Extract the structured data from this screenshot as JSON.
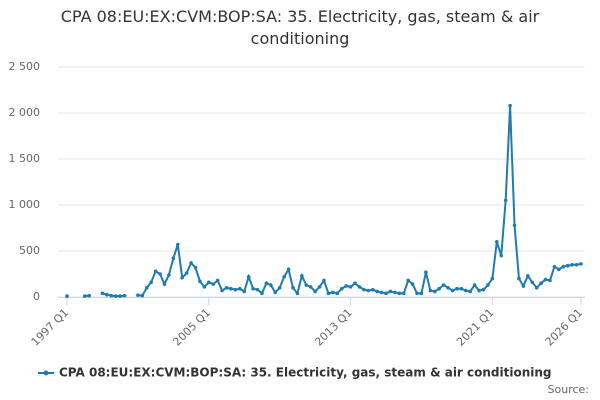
{
  "chart_data": {
    "type": "line",
    "title": "CPA 08:EU:EX:CVM:BOP:SA: 35. Electricity, gas, steam & air conditioning",
    "source": "Source:",
    "categories": [
      "1997 Q1",
      null,
      null,
      null,
      null,
      null,
      null,
      null,
      null,
      null,
      null,
      null,
      null,
      null,
      null,
      null,
      null,
      null,
      null,
      null,
      null,
      null,
      null,
      null,
      null,
      null,
      null,
      null,
      null,
      null,
      null,
      null,
      "2005 Q1",
      null,
      null,
      null,
      null,
      null,
      null,
      null,
      null,
      null,
      null,
      null,
      null,
      null,
      null,
      null,
      null,
      null,
      null,
      null,
      null,
      null,
      null,
      null,
      null,
      null,
      null,
      null,
      null,
      null,
      null,
      null,
      "2013 Q1",
      null,
      null,
      null,
      null,
      null,
      null,
      null,
      null,
      null,
      null,
      null,
      null,
      null,
      null,
      null,
      null,
      null,
      null,
      null,
      null,
      null,
      null,
      null,
      null,
      null,
      null,
      null,
      null,
      null,
      null,
      null,
      "2021 Q1",
      null,
      null,
      null,
      null,
      null,
      null,
      null,
      null,
      null,
      null,
      null,
      null,
      null,
      null,
      null,
      null,
      null,
      null,
      null,
      "2026 Q1"
    ],
    "series": [
      {
        "name": "CPA 08:EU:EX:CVM:BOP:SA: 35. Electricity, gas, steam & air conditioning",
        "color": "#1f7bb0",
        "values": [
          10,
          null,
          null,
          null,
          10,
          15,
          null,
          null,
          40,
          25,
          15,
          10,
          10,
          15,
          null,
          null,
          20,
          15,
          100,
          160,
          280,
          250,
          140,
          240,
          420,
          570,
          210,
          260,
          370,
          320,
          170,
          110,
          160,
          140,
          180,
          70,
          100,
          90,
          80,
          90,
          60,
          220,
          90,
          80,
          40,
          150,
          130,
          50,
          100,
          220,
          300,
          100,
          40,
          230,
          130,
          110,
          60,
          110,
          180,
          40,
          50,
          40,
          90,
          120,
          110,
          150,
          110,
          80,
          70,
          80,
          60,
          50,
          40,
          60,
          50,
          40,
          40,
          180,
          140,
          40,
          40,
          270,
          70,
          60,
          90,
          130,
          100,
          70,
          90,
          90,
          70,
          60,
          130,
          70,
          80,
          130,
          200,
          600,
          450,
          1050,
          2080,
          780,
          200,
          120,
          230,
          160,
          100,
          150,
          190,
          180,
          330,
          300,
          330,
          340,
          350,
          350,
          360
        ]
      }
    ],
    "ylim": [
      0,
      2500
    ],
    "yticks": [
      0,
      500,
      {
        "value": 1000,
        "label": "1 000"
      },
      {
        "value": 1500,
        "label": "1 500"
      },
      {
        "value": 2000,
        "label": "2 000"
      },
      {
        "value": 2500,
        "label": "2 500"
      }
    ],
    "grid": true
  }
}
